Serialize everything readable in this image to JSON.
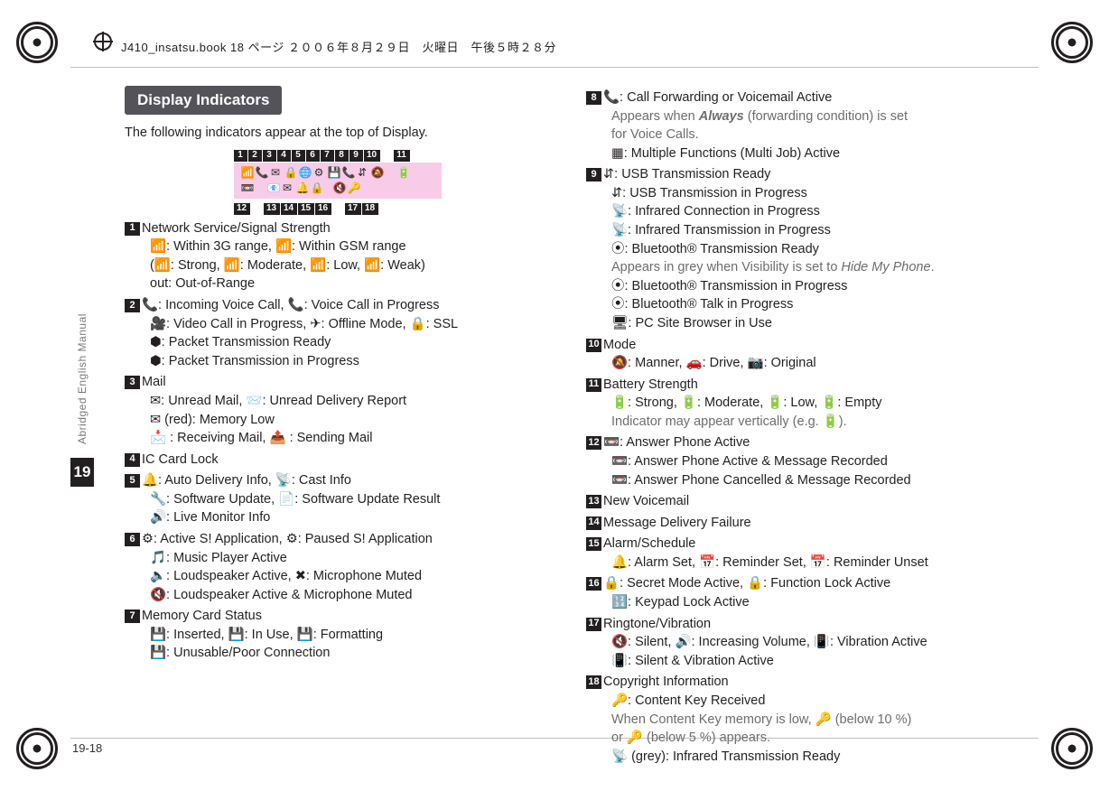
{
  "header_line": "J410_insatsu.book  18 ページ  ２００６年８月２９日　火曜日　午後５時２８分",
  "side_tab": {
    "label": "Abridged English Manual",
    "chapter": "19"
  },
  "page_number": "19-18",
  "section_header": "Display Indicators",
  "intro": "The following indicators appear at the top of Display.",
  "indicator_top_row": [
    "1",
    "2",
    "3",
    "4",
    "5",
    "6",
    "7",
    "8",
    "9",
    "10",
    "",
    "11"
  ],
  "indicator_bottom_row": [
    "12",
    "",
    "13",
    "14",
    "15",
    "16",
    "",
    "17",
    "18"
  ],
  "left_items": [
    {
      "n": "1",
      "title": "Network Service/Signal Strength",
      "subs": [
        "📶: Within 3G range, 📶: Within GSM range",
        "(📶: Strong, 📶: Moderate, 📶: Low, 📶: Weak)",
        "out: Out-of-Range"
      ]
    },
    {
      "n": "2",
      "title": "📞: Incoming Voice Call, 📞: Voice Call in Progress",
      "subs": [
        "🎥: Video Call in Progress,  ✈: Offline Mode, 🔒: SSL",
        "⬢: Packet Transmission Ready",
        "⬢: Packet Transmission in Progress"
      ]
    },
    {
      "n": "3",
      "title": "Mail",
      "subs": [
        "✉: Unread Mail, 📨: Unread Delivery Report",
        "✉ (red): Memory Low",
        "📩 : Receiving Mail,  📤 : Sending Mail"
      ]
    },
    {
      "n": "4",
      "title": "IC Card Lock",
      "subs": []
    },
    {
      "n": "5",
      "title": "🔔: Auto Delivery Info, 📡: Cast Info",
      "subs": [
        "🔧: Software Update, 📄: Software Update Result",
        "🔊: Live Monitor Info"
      ]
    },
    {
      "n": "6",
      "title": "⚙: Active S! Application, ⚙: Paused S! Application",
      "subs": [
        "🎵: Music Player Active",
        "🔈: Loudspeaker Active, ✖: Microphone Muted",
        "🔇: Loudspeaker Active & Microphone Muted"
      ]
    },
    {
      "n": "7",
      "title": "Memory Card Status",
      "subs": [
        "💾: Inserted, 💾: In Use, 💾: Formatting",
        "💾: Unusable/Poor Connection"
      ]
    }
  ],
  "right_items": [
    {
      "n": "8",
      "title": "📞: Call Forwarding or Voicemail Active",
      "subs": [
        {
          "grey": true,
          "text": "Appears when ",
          "ital": "Always",
          "after": " (forwarding condition) is set"
        },
        {
          "grey": true,
          "text": "for Voice Calls."
        },
        {
          "text": "▦: Multiple Functions (Multi Job) Active"
        }
      ]
    },
    {
      "n": "9",
      "title": "⇵: USB Transmission Ready",
      "subs": [
        {
          "text": "⇵: USB Transmission in Progress"
        },
        {
          "text": "📡: Infrared Connection in Progress"
        },
        {
          "text": "📡: Infrared Transmission in Progress"
        },
        {
          "text": "⦿: Bluetooth® Transmission Ready"
        },
        {
          "grey": true,
          "text": "Appears in grey when Visibility is set to ",
          "ital2": "Hide My Phone",
          "after": "."
        },
        {
          "text": "⦿: Bluetooth® Transmission in Progress"
        },
        {
          "text": "⦿: Bluetooth® Talk in Progress"
        },
        {
          "text": "🖥: PC Site Browser in Use"
        }
      ]
    },
    {
      "n": "10",
      "title": "Mode",
      "subs": [
        {
          "text": "🔕: Manner, 🚗: Drive, 📷: Original"
        }
      ]
    },
    {
      "n": "11",
      "title": "Battery Strength",
      "subs": [
        {
          "text": "🔋: Strong, 🔋: Moderate, 🔋: Low, 🔋: Empty"
        },
        {
          "grey": true,
          "text": "Indicator may appear vertically (e.g. 🔋)."
        }
      ]
    },
    {
      "n": "12",
      "title": "📼: Answer Phone Active",
      "subs": [
        {
          "text": "📼: Answer Phone Active & Message Recorded"
        },
        {
          "text": "📼: Answer Phone Cancelled & Message Recorded"
        }
      ]
    },
    {
      "n": "13",
      "title": "New Voicemail",
      "subs": []
    },
    {
      "n": "14",
      "title": "Message Delivery Failure",
      "subs": []
    },
    {
      "n": "15",
      "title": "Alarm/Schedule",
      "subs": [
        {
          "text": "🔔: Alarm Set,  📅: Reminder Set, 📅: Reminder Unset"
        }
      ]
    },
    {
      "n": "16",
      "title": "🔒: Secret Mode Active, 🔒: Function Lock Active",
      "subs": [
        {
          "text": "🔢: Keypad Lock Active"
        }
      ]
    },
    {
      "n": "17",
      "title": "Ringtone/Vibration",
      "subs": [
        {
          "text": "🔇: Silent, 🔊: Increasing Volume, 📳: Vibration Active"
        },
        {
          "text": "📳: Silent & Vibration Active"
        }
      ]
    },
    {
      "n": "18",
      "title": "Copyright Information",
      "subs": [
        {
          "text": "🔑: Content Key Received"
        },
        {
          "grey": true,
          "text": "When Content Key memory is low, 🔑 (below 10 %)"
        },
        {
          "grey": true,
          "text": "or 🔑 (below 5 %) appears."
        },
        {
          "text": "📡 (grey): Infrared Transmission Ready"
        }
      ]
    }
  ]
}
